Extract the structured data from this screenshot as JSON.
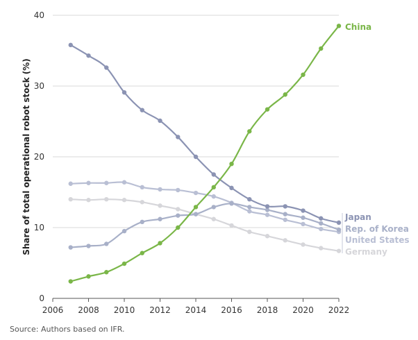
{
  "chart_data": {
    "type": "line",
    "ylabel": "Share of total operational robot stock (%)",
    "xlabel": "",
    "xlim": [
      2006,
      2022
    ],
    "ylim": [
      0,
      40
    ],
    "x_ticks": [
      "2006",
      "2008",
      "2010",
      "2012",
      "2014",
      "2016",
      "2018",
      "2020",
      "2022"
    ],
    "y_ticks": [
      "0",
      "10",
      "20",
      "30",
      "40"
    ],
    "grid": "horizontal",
    "x": [
      2007,
      2008,
      2009,
      2010,
      2011,
      2012,
      2013,
      2014,
      2015,
      2016,
      2017,
      2018,
      2019,
      2020,
      2021,
      2022
    ],
    "series": [
      {
        "name": "China",
        "color": "#7ab648",
        "values": [
          2.4,
          3.1,
          3.7,
          4.9,
          6.4,
          7.8,
          10.0,
          12.9,
          15.7,
          19.0,
          23.6,
          26.7,
          28.8,
          31.6,
          35.3,
          38.5
        ]
      },
      {
        "name": "Japan",
        "color": "#8b93b3",
        "values": [
          35.8,
          34.3,
          32.6,
          29.1,
          26.6,
          25.1,
          22.8,
          20.0,
          17.5,
          15.6,
          14.0,
          13.0,
          13.0,
          12.4,
          11.3,
          10.7
        ]
      },
      {
        "name": "Rep. of Korea",
        "color": "#a8b0c8",
        "values": [
          7.2,
          7.4,
          7.7,
          9.5,
          10.8,
          11.2,
          11.7,
          11.9,
          12.9,
          13.4,
          12.9,
          12.5,
          11.9,
          11.4,
          10.6,
          9.7
        ]
      },
      {
        "name": "United States",
        "color": "#b9bfd4",
        "values": [
          16.2,
          16.3,
          16.3,
          16.4,
          15.7,
          15.4,
          15.3,
          14.9,
          14.4,
          13.5,
          12.3,
          11.8,
          11.1,
          10.5,
          9.8,
          9.4
        ]
      },
      {
        "name": "Germany",
        "color": "#d6d6da",
        "values": [
          14.0,
          13.9,
          14.0,
          13.9,
          13.6,
          13.1,
          12.6,
          11.9,
          11.2,
          10.3,
          9.4,
          8.8,
          8.2,
          7.6,
          7.1,
          6.7
        ]
      }
    ],
    "source": "Source: Authors based on IFR."
  }
}
